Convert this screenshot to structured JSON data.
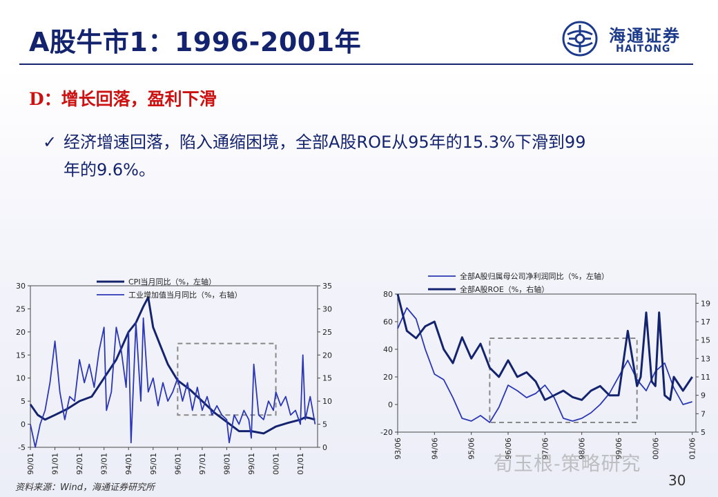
{
  "slide": {
    "title": "A股牛市1：1996-2001年",
    "subtitle": "D：增长回落，盈利下滑",
    "bullet_check": "✓",
    "bullet_line1": "经济增速回落，陷入通缩困境，全部A股ROE从95年的15.3%下滑到99",
    "bullet_line2": "年的9.6%。",
    "page_number": "30",
    "source": "资料来源：Wind，海通证券研究所",
    "watermark": "荀玉根-策略研究",
    "logo_cn": "海通证券",
    "logo_en": "HAITONG"
  },
  "colors": {
    "title": "#14236e",
    "accent_red": "#cc1111",
    "series_dark": "#14236e",
    "series_blue": "#2a36b4",
    "box_dash": "#888888"
  },
  "chart_data": [
    {
      "type": "line",
      "legend": [
        "CPI当月同比（%，左轴）",
        "工业增加值当月同比（%，右轴）"
      ],
      "x_ticks": [
        "90/01",
        "91/01",
        "92/01",
        "93/01",
        "94/01",
        "95/01",
        "96/01",
        "97/01",
        "98/01",
        "99/01",
        "00/01",
        "01/01"
      ],
      "left_axis": {
        "ticks": [
          "30",
          "25",
          "20",
          "15",
          "10",
          "5",
          "0",
          "-5"
        ],
        "ylim": [
          -5,
          30
        ]
      },
      "right_axis": {
        "ticks": [
          "35",
          "30",
          "25",
          "20",
          "15",
          "10",
          "5",
          "0"
        ],
        "ylim": [
          0,
          35
        ]
      },
      "series": [
        {
          "name": "CPI当月同比（%，左轴）",
          "axis": "left",
          "x": [
            1990.0,
            1990.3,
            1990.6,
            1991.0,
            1991.5,
            1992.0,
            1992.5,
            1993.0,
            1993.5,
            1994.0,
            1994.3,
            1994.6,
            1994.8,
            1995.0,
            1995.3,
            1995.6,
            1996.0,
            1996.5,
            1997.0,
            1997.5,
            1998.0,
            1998.5,
            1999.0,
            1999.5,
            2000.0,
            2000.5,
            2001.0,
            2001.2,
            2001.4,
            2001.6
          ],
          "y": [
            4.3,
            2.0,
            1.0,
            2.0,
            3.3,
            5.0,
            6.0,
            10.0,
            14.0,
            20.0,
            22.0,
            25.5,
            27.5,
            21.0,
            17.0,
            13.0,
            9.5,
            7.5,
            5.0,
            2.5,
            0.5,
            -1.5,
            -1.5,
            -2.0,
            -0.5,
            0.3,
            1.0,
            1.5,
            1.3,
            1.0
          ]
        },
        {
          "name": "工业增加值当月同比（%，右轴）",
          "axis": "right",
          "x": [
            1990.0,
            1990.2,
            1990.4,
            1990.6,
            1990.8,
            1991.0,
            1991.2,
            1991.4,
            1991.6,
            1991.8,
            1992.0,
            1992.2,
            1992.4,
            1992.6,
            1992.8,
            1993.0,
            1993.1,
            1993.3,
            1993.5,
            1993.7,
            1993.9,
            1994.0,
            1994.1,
            1994.3,
            1994.5,
            1994.6,
            1994.8,
            1995.0,
            1995.2,
            1995.4,
            1995.6,
            1995.8,
            1996.0,
            1996.2,
            1996.4,
            1996.6,
            1996.8,
            1997.0,
            1997.2,
            1997.4,
            1997.6,
            1997.8,
            1998.0,
            1998.1,
            1998.3,
            1998.5,
            1998.7,
            1998.9,
            1999.0,
            1999.1,
            1999.3,
            1999.5,
            1999.7,
            1999.9,
            2000.0,
            2000.2,
            2000.4,
            2000.6,
            2000.8,
            2001.0,
            2001.1,
            2001.2,
            2001.4,
            2001.6
          ],
          "y": [
            5,
            0,
            5,
            8,
            14,
            23,
            12,
            6,
            11,
            10,
            19,
            14,
            18,
            13,
            21,
            26,
            8,
            12,
            26,
            21,
            13,
            25,
            1,
            27,
            10,
            28,
            12,
            15,
            9,
            14,
            10,
            12,
            15,
            10,
            14,
            8,
            13,
            8,
            11,
            7,
            9,
            7,
            6,
            1,
            7,
            5,
            8,
            6,
            2,
            18,
            7,
            6,
            10,
            8,
            12,
            9,
            11,
            7,
            8,
            5,
            20,
            6,
            11,
            5
          ]
        }
      ]
    },
    {
      "type": "line",
      "legend": [
        "全部A股归属母公司净利润同比（%，左轴）",
        "全部A股ROE（%，右轴）"
      ],
      "x_ticks": [
        "93/06",
        "94/06",
        "95/06",
        "96/06",
        "97/06",
        "98/06",
        "99/06",
        "00/06",
        "01/06"
      ],
      "left_axis": {
        "ticks": [
          "80",
          "60",
          "40",
          "20",
          "0",
          "-20"
        ],
        "ylim": [
          -20,
          80
        ]
      },
      "right_axis": {
        "ticks": [
          "19",
          "17",
          "15",
          "13",
          "11",
          "9",
          "7",
          "5"
        ],
        "ylim": [
          5,
          20
        ]
      },
      "series": [
        {
          "name": "全部A股归属母公司净利润同比（%，左轴）",
          "axis": "left",
          "x": [
            1993.5,
            1993.75,
            1994.0,
            1994.25,
            1994.5,
            1994.75,
            1995.0,
            1995.25,
            1995.5,
            1995.75,
            1996.0,
            1996.25,
            1996.5,
            1996.75,
            1997.0,
            1997.25,
            1997.5,
            1997.75,
            1998.0,
            1998.25,
            1998.5,
            1998.75,
            1999.0,
            1999.25,
            1999.5,
            1999.75,
            2000.0,
            2000.25,
            2000.5,
            2000.75,
            2001.0,
            2001.25,
            2001.5
          ],
          "y": [
            55,
            70,
            62,
            40,
            22,
            18,
            5,
            -10,
            -12,
            -8,
            -13,
            -2,
            14,
            10,
            5,
            8,
            14,
            5,
            -10,
            -12,
            -10,
            -6,
            0,
            8,
            20,
            32,
            18,
            10,
            24,
            30,
            12,
            0,
            2
          ]
        },
        {
          "name": "全部A股ROE（%，右轴）",
          "axis": "right",
          "x": [
            1993.5,
            1993.75,
            1994.0,
            1994.25,
            1994.5,
            1994.75,
            1995.0,
            1995.25,
            1995.5,
            1995.75,
            1996.0,
            1996.25,
            1996.5,
            1996.75,
            1997.0,
            1997.25,
            1997.5,
            1997.75,
            1998.0,
            1998.25,
            1998.5,
            1998.75,
            1999.0,
            1999.25,
            1999.5,
            1999.75,
            2000.0,
            2000.1,
            2000.25,
            2000.4,
            2000.5,
            2000.6,
            2000.75,
            2000.9,
            2001.0,
            2001.25,
            2001.5
          ],
          "y": [
            20,
            16,
            15.2,
            16.5,
            17,
            14,
            12.5,
            15.3,
            13,
            14.6,
            12,
            11,
            12.8,
            11,
            11.5,
            10.5,
            8.5,
            9,
            9.5,
            8.8,
            8.5,
            9.5,
            10,
            9,
            9,
            16,
            10,
            11,
            18,
            10.5,
            10,
            18,
            9,
            8.5,
            11,
            9.5,
            11
          ]
        }
      ]
    }
  ]
}
